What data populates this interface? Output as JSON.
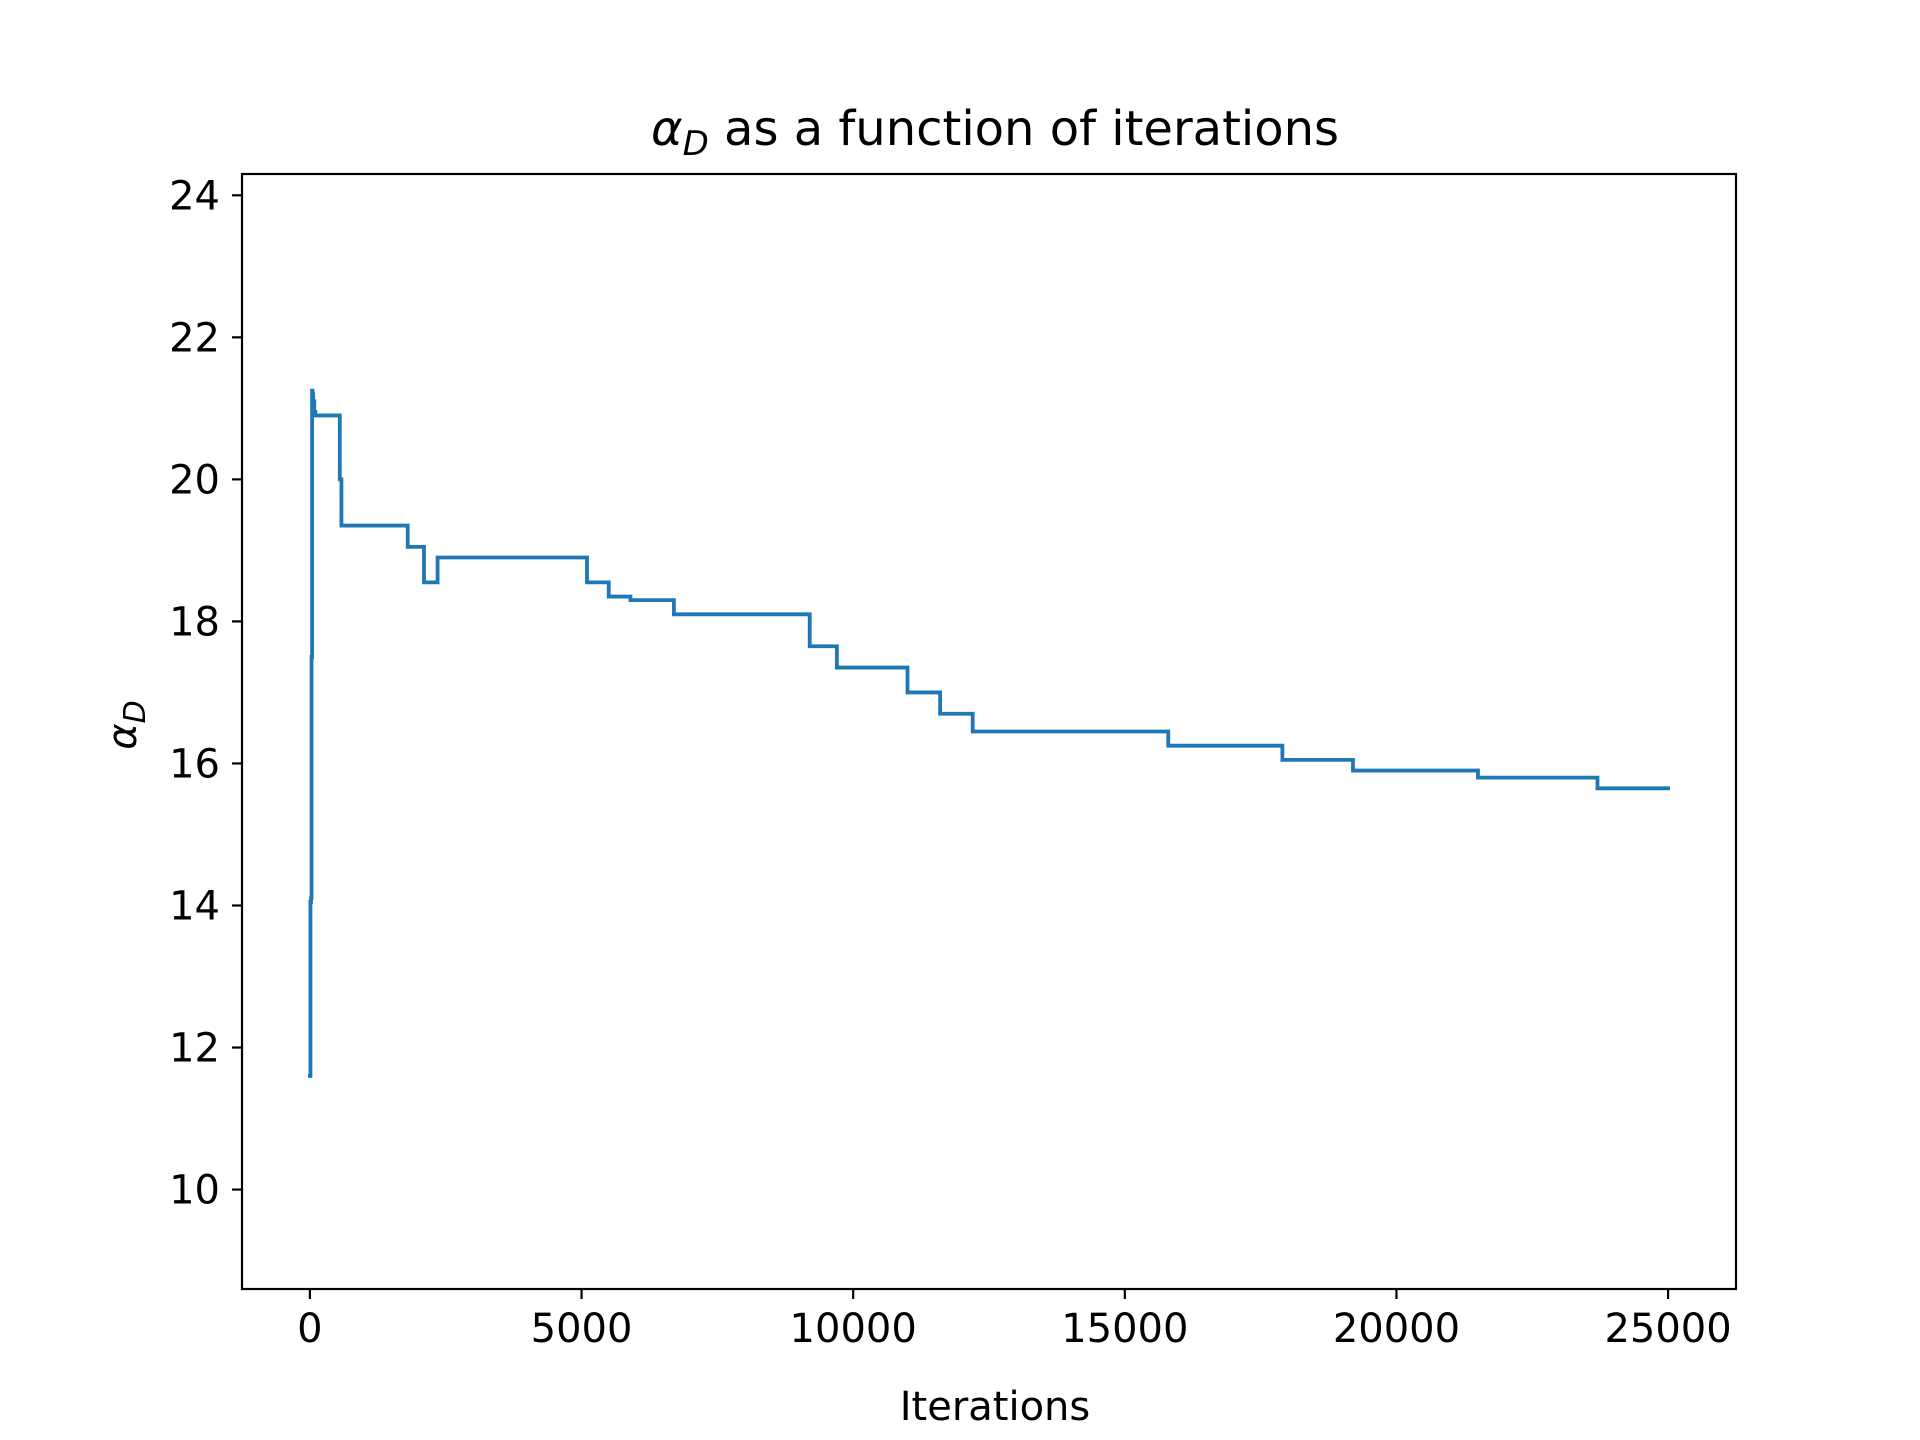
{
  "chart_data": {
    "type": "line",
    "title": {
      "symbol": "α",
      "subscript": "D",
      "rest": " as a function of iterations"
    },
    "xlabel": "Iterations",
    "ylabel": {
      "symbol": "α",
      "subscript": "D"
    },
    "xlim": [
      -1250,
      26250
    ],
    "ylim": [
      8.6,
      24.3
    ],
    "xticks": [
      0,
      5000,
      10000,
      15000,
      20000,
      25000
    ],
    "yticks": [
      10,
      12,
      14,
      16,
      18,
      20,
      22,
      24
    ],
    "grid": false,
    "line_color": "#1f77b4",
    "series": [
      {
        "step": true,
        "x": [
          0,
          10,
          20,
          30,
          40,
          50,
          60,
          80,
          100,
          120,
          550,
          560,
          580,
          600,
          1800,
          2100,
          2350,
          5100,
          5500,
          5900,
          6700,
          9200,
          9700,
          11000,
          11600,
          12200,
          15800,
          17900,
          18200,
          19200,
          21500,
          23700,
          25000
        ],
        "y": [
          11.6,
          14.05,
          14.1,
          17.5,
          21.25,
          21.2,
          21.1,
          20.95,
          20.9,
          20.9,
          20.0,
          20.0,
          19.35,
          19.35,
          19.05,
          18.55,
          18.9,
          18.55,
          18.35,
          18.3,
          18.1,
          17.65,
          17.35,
          17.0,
          16.7,
          16.45,
          16.25,
          16.05,
          16.05,
          15.9,
          15.8,
          15.65,
          15.65
        ]
      }
    ]
  }
}
